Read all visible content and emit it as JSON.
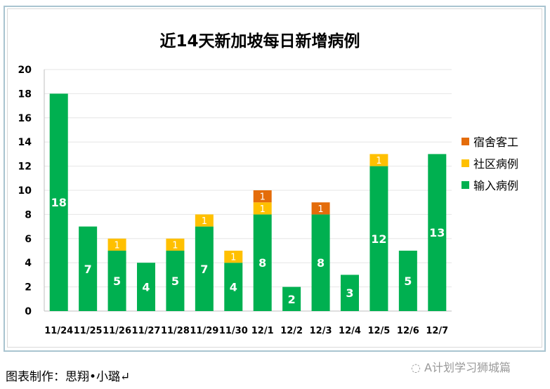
{
  "chart_data": {
    "type": "bar",
    "stacked": true,
    "title": "近14天新加坡每日新增病例",
    "categories": [
      "11/24",
      "11/25",
      "11/26",
      "11/27",
      "11/28",
      "11/29",
      "11/30",
      "12/1",
      "12/2",
      "12/3",
      "12/4",
      "12/5",
      "12/6",
      "12/7"
    ],
    "series": [
      {
        "name": "输入病例",
        "color": "#00b050",
        "values": [
          18,
          7,
          5,
          4,
          5,
          7,
          4,
          8,
          2,
          8,
          3,
          12,
          5,
          13
        ]
      },
      {
        "name": "社区病例",
        "color": "#ffc000",
        "values": [
          0,
          0,
          1,
          0,
          1,
          1,
          1,
          1,
          0,
          0,
          0,
          1,
          0,
          0
        ]
      },
      {
        "name": "宿舍客工",
        "color": "#e46c0a",
        "values": [
          0,
          0,
          0,
          0,
          0,
          0,
          0,
          1,
          0,
          1,
          0,
          0,
          0,
          0
        ]
      }
    ],
    "ylim": [
      0,
      20
    ],
    "yticks": [
      0,
      2,
      4,
      6,
      8,
      10,
      12,
      14,
      16,
      18,
      20
    ],
    "grid": true,
    "legend": "right"
  },
  "footer": "图表制作：思翔•小璐↵",
  "watermark": "A计划学习狮城篇"
}
